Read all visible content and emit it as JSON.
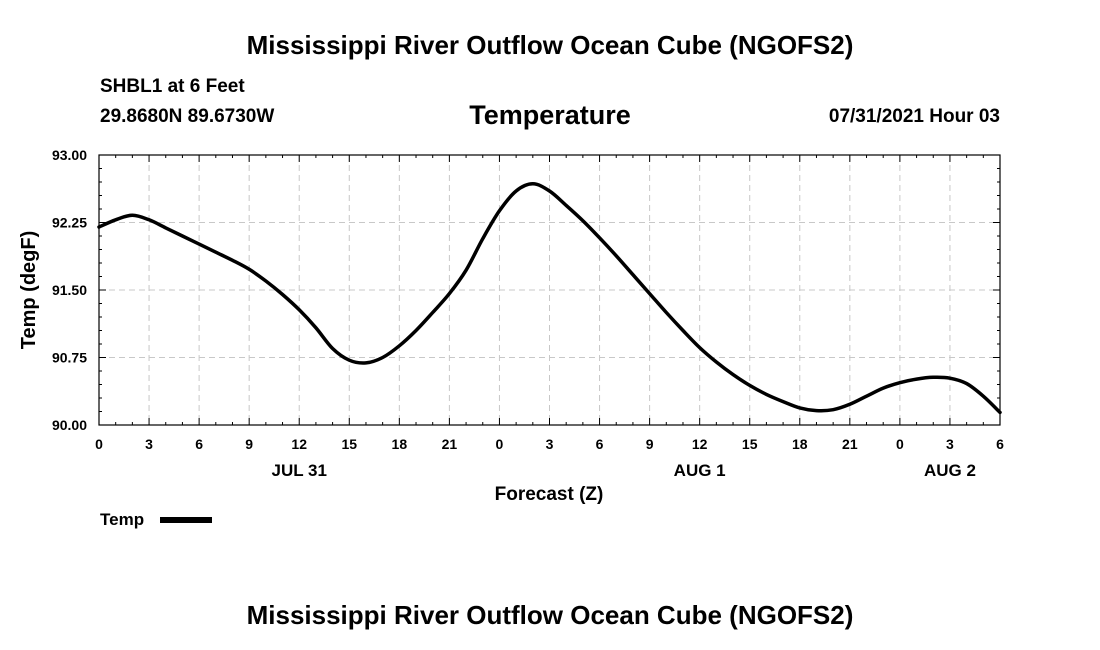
{
  "header": {
    "title": "Mississippi River Outflow Ocean Cube (NGOFS2)",
    "station": "SHBL1 at 6 Feet",
    "coordinates": "29.8680N  89.6730W",
    "variable": "Temperature",
    "datetime": "07/31/2021 Hour 03"
  },
  "footer": {
    "title": "Mississippi River Outflow Ocean Cube (NGOFS2)"
  },
  "chart_data": {
    "type": "line",
    "title": "Temperature",
    "xlabel": "Forecast (Z)",
    "ylabel": "Temp (degF)",
    "xlim": [
      0,
      54
    ],
    "ylim": [
      90.0,
      93.0
    ],
    "grid": true,
    "yticks": [
      90.0,
      90.75,
      91.5,
      92.25,
      93.0
    ],
    "ytick_labels": [
      "90.00",
      "90.75",
      "91.50",
      "92.25",
      "93.00"
    ],
    "xticks": [
      0,
      3,
      6,
      9,
      12,
      15,
      18,
      21,
      24,
      27,
      30,
      33,
      36,
      39,
      42,
      45,
      48,
      51,
      54
    ],
    "xtick_labels": [
      "0",
      "3",
      "6",
      "9",
      "12",
      "15",
      "18",
      "21",
      "0",
      "3",
      "6",
      "9",
      "12",
      "15",
      "18",
      "21",
      "0",
      "3",
      "6"
    ],
    "date_labels": [
      {
        "x": 12,
        "label": "JUL 31"
      },
      {
        "x": 36,
        "label": "AUG 1"
      },
      {
        "x": 51,
        "label": "AUG 2"
      }
    ],
    "legend": {
      "position": "bottom-left",
      "label": "Temp"
    },
    "series": [
      {
        "name": "Temp",
        "color": "#000000",
        "x": [
          0,
          1,
          2,
          3,
          4,
          5,
          6,
          7,
          8,
          9,
          10,
          11,
          12,
          13,
          14,
          15,
          16,
          17,
          18,
          19,
          20,
          21,
          22,
          23,
          24,
          25,
          26,
          27,
          28,
          29,
          30,
          31,
          32,
          33,
          34,
          35,
          36,
          37,
          38,
          39,
          40,
          41,
          42,
          43,
          44,
          45,
          46,
          47,
          48,
          49,
          50,
          51,
          52,
          53,
          54
        ],
        "values": [
          92.2,
          92.28,
          92.33,
          92.28,
          92.19,
          92.1,
          92.01,
          91.92,
          91.83,
          91.73,
          91.6,
          91.45,
          91.28,
          91.08,
          90.85,
          90.72,
          90.69,
          90.75,
          90.88,
          91.05,
          91.25,
          91.46,
          91.72,
          92.07,
          92.38,
          92.6,
          92.68,
          92.6,
          92.44,
          92.27,
          92.08,
          91.88,
          91.67,
          91.46,
          91.25,
          91.05,
          90.86,
          90.7,
          90.56,
          90.44,
          90.34,
          90.26,
          90.19,
          90.16,
          90.17,
          90.23,
          90.32,
          90.41,
          90.47,
          90.51,
          90.53,
          90.52,
          90.46,
          90.32,
          90.14
        ]
      }
    ]
  }
}
